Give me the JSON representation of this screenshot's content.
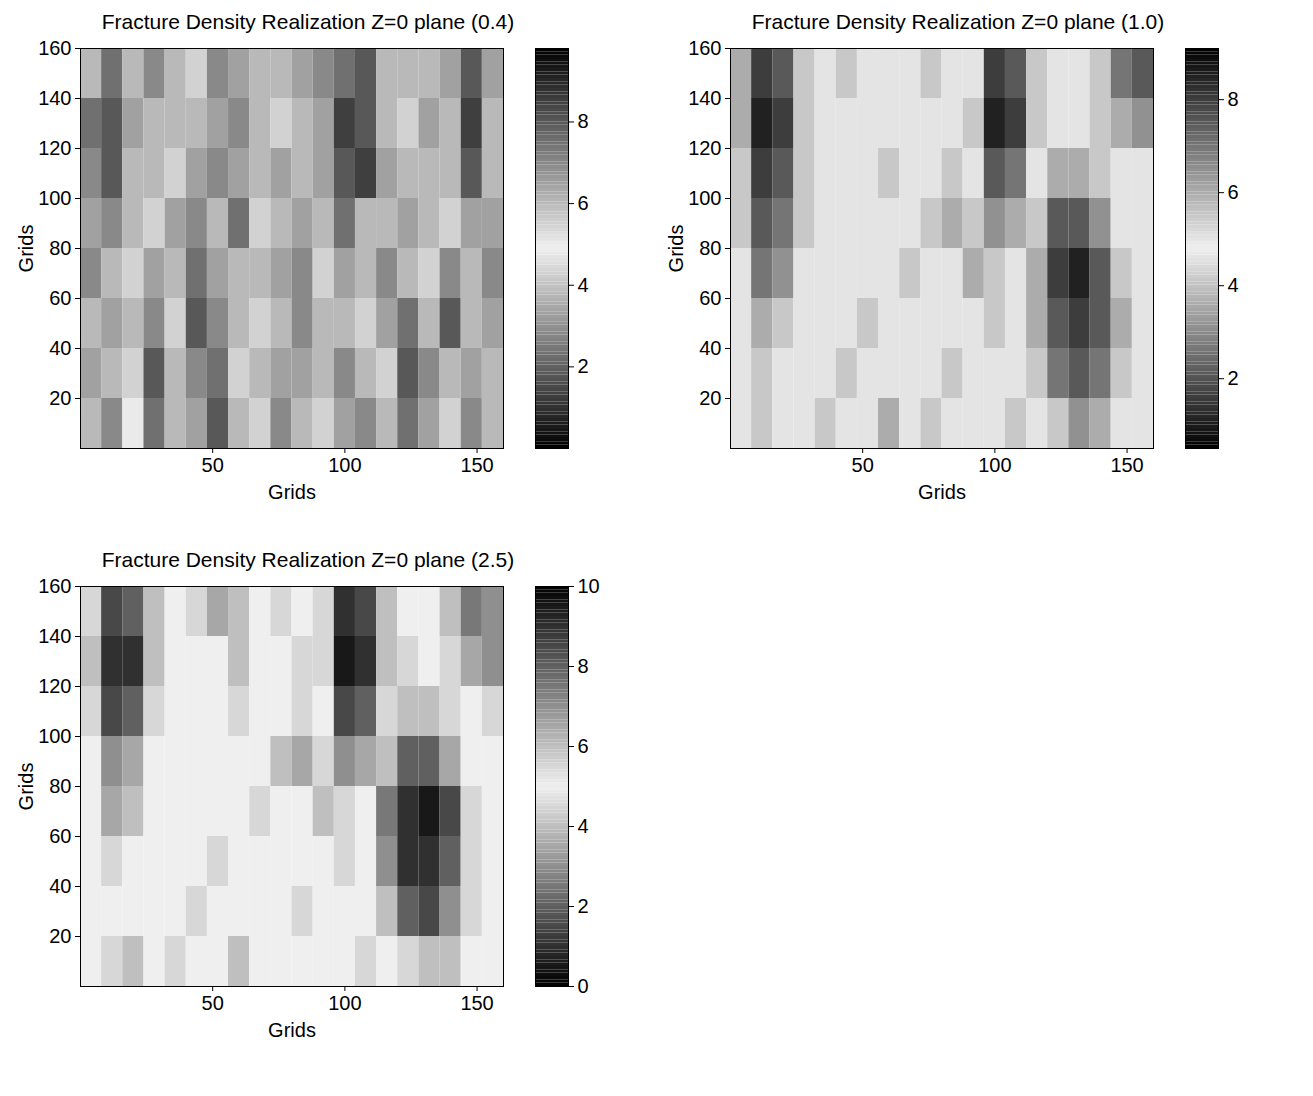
{
  "chart_data": [
    {
      "type": "heatmap",
      "title": "Fracture Density Realization Z=0 plane (0.4)",
      "x_label": "Grids",
      "y_label": "Grids",
      "xlim": [
        0,
        160
      ],
      "ylim": [
        0,
        160
      ],
      "xticks": [
        50,
        100,
        150
      ],
      "yticks": [
        20,
        40,
        60,
        80,
        100,
        120,
        140,
        160
      ],
      "x_bins": [
        0,
        8,
        16,
        24,
        32,
        40,
        48,
        56,
        64,
        72,
        80,
        88,
        96,
        104,
        112,
        120,
        128,
        136,
        144,
        152,
        160
      ],
      "y_bins": [
        0,
        20,
        40,
        60,
        80,
        100,
        120,
        140,
        160
      ],
      "cells": [
        [
          6,
          7,
          5,
          7.5,
          6,
          6.5,
          8,
          6,
          5.5,
          7,
          6,
          5.5,
          6.5,
          7,
          6,
          7.5,
          6.5,
          5.5,
          7,
          6
        ],
        [
          6.5,
          6,
          5.5,
          8,
          6,
          7,
          7.5,
          5.5,
          6,
          6.5,
          6.5,
          6,
          7,
          6,
          5.5,
          8,
          7,
          6,
          6.5,
          6
        ],
        [
          6,
          6.5,
          6,
          7,
          5.5,
          8,
          7,
          6,
          5.5,
          6,
          7,
          6,
          6,
          5.5,
          6.5,
          7.5,
          6,
          8,
          6,
          6.5
        ],
        [
          7,
          6,
          5.5,
          6.5,
          6,
          7.5,
          6.5,
          6,
          6,
          6.5,
          7,
          5.5,
          6.5,
          6,
          7,
          6,
          5.5,
          7,
          6,
          7
        ],
        [
          6.5,
          7,
          6,
          5.5,
          6.5,
          7,
          6,
          7.5,
          5.5,
          6,
          6.5,
          6,
          7.5,
          6,
          6,
          6.5,
          6,
          5.5,
          6.5,
          6.5
        ],
        [
          7,
          8,
          6,
          6,
          5.5,
          6.5,
          7,
          6.5,
          6,
          6.5,
          6,
          6.5,
          8,
          8.5,
          6.5,
          6,
          6,
          6,
          8,
          6
        ],
        [
          7.5,
          8,
          6.5,
          6,
          6,
          6,
          6.5,
          7,
          6,
          5.5,
          6,
          6.5,
          8.5,
          8,
          6,
          5.5,
          6.5,
          6,
          8.5,
          6
        ],
        [
          6,
          7.5,
          6,
          7,
          6,
          5.5,
          7,
          6.5,
          6,
          6,
          6.5,
          7,
          7.5,
          8,
          6,
          6,
          6,
          6.5,
          8,
          6.5
        ]
      ],
      "colorbar": {
        "range": [
          0,
          9.8
        ],
        "ticks": [
          2,
          4,
          6,
          8
        ]
      }
    },
    {
      "type": "heatmap",
      "title": "Fracture Density Realization Z=0 plane (1.0)",
      "x_label": "Grids",
      "y_label": "Grids",
      "xlim": [
        0,
        160
      ],
      "ylim": [
        0,
        160
      ],
      "xticks": [
        50,
        100,
        150
      ],
      "yticks": [
        20,
        40,
        60,
        80,
        100,
        120,
        140,
        160
      ],
      "x_bins": [
        0,
        8,
        16,
        24,
        32,
        40,
        48,
        56,
        64,
        72,
        80,
        88,
        96,
        104,
        112,
        120,
        128,
        136,
        144,
        152,
        160
      ],
      "y_bins": [
        0,
        20,
        40,
        60,
        80,
        100,
        120,
        140,
        160
      ],
      "cells": [
        [
          5,
          5.5,
          5,
          5,
          5.5,
          5,
          5,
          6,
          5,
          5.5,
          5,
          5,
          5,
          5.5,
          5,
          5.5,
          6.5,
          6,
          5,
          5
        ],
        [
          5,
          5.5,
          5,
          5,
          5,
          5.5,
          5,
          5,
          5,
          5,
          5.5,
          5,
          5,
          5,
          5.5,
          7,
          7.5,
          7,
          5.5,
          5
        ],
        [
          5,
          6,
          5.5,
          5,
          5,
          5,
          5.5,
          5,
          5,
          5,
          5,
          5,
          5.5,
          5,
          6,
          7.5,
          8,
          7.5,
          6,
          5
        ],
        [
          5,
          7,
          6.5,
          5,
          5,
          5,
          5,
          5,
          5.5,
          5,
          5,
          6,
          5.5,
          5,
          6,
          8,
          8.5,
          7.5,
          5.5,
          5
        ],
        [
          5.5,
          7.5,
          7,
          5.5,
          5,
          5,
          5,
          5,
          5,
          5.5,
          6,
          5.5,
          6.5,
          6,
          5.5,
          7.5,
          7.5,
          6.5,
          5,
          5
        ],
        [
          5.5,
          8,
          7.5,
          5.5,
          5,
          5,
          5,
          5.5,
          5,
          5,
          5.5,
          5,
          7.5,
          7,
          5,
          6,
          6,
          5.5,
          5,
          5
        ],
        [
          6,
          8.5,
          8,
          5.5,
          5,
          5,
          5,
          5,
          5,
          5,
          5,
          5.5,
          8.5,
          8,
          5.5,
          5,
          5,
          5.5,
          6,
          6.5
        ],
        [
          6,
          8,
          7.5,
          5.5,
          5,
          5.5,
          5,
          5,
          5,
          5.5,
          5,
          5,
          8,
          7.5,
          5.5,
          5,
          5,
          5.5,
          7,
          7.5
        ]
      ],
      "colorbar": {
        "range": [
          0.5,
          9.1
        ],
        "ticks": [
          2,
          4,
          6,
          8
        ]
      }
    },
    {
      "type": "heatmap",
      "title": "Fracture Density Realization Z=0 plane (2.5)",
      "x_label": "Grids",
      "y_label": "Grids",
      "xlim": [
        0,
        160
      ],
      "ylim": [
        0,
        160
      ],
      "xticks": [
        50,
        100,
        150
      ],
      "yticks": [
        20,
        40,
        60,
        80,
        100,
        120,
        140,
        160
      ],
      "x_bins": [
        0,
        8,
        16,
        24,
        32,
        40,
        48,
        56,
        64,
        72,
        80,
        88,
        96,
        104,
        112,
        120,
        128,
        136,
        144,
        152,
        160
      ],
      "y_bins": [
        0,
        20,
        40,
        60,
        80,
        100,
        120,
        140,
        160
      ],
      "cells": [
        [
          5,
          5.5,
          6,
          5,
          5.5,
          5,
          5,
          6,
          5,
          5,
          5,
          5,
          5,
          5.5,
          5,
          5.5,
          6,
          6,
          5,
          5
        ],
        [
          5,
          5,
          5,
          5,
          5,
          5.5,
          5,
          5,
          5,
          5,
          5.5,
          5,
          5,
          5,
          6,
          8,
          8.5,
          7,
          5.5,
          5
        ],
        [
          5,
          5.5,
          5,
          5,
          5,
          5,
          5.5,
          5,
          5,
          5,
          5,
          5,
          5.5,
          5,
          7,
          9,
          9,
          8,
          5.5,
          5
        ],
        [
          5,
          6.5,
          6,
          5,
          5,
          5,
          5,
          5,
          5.5,
          5,
          5,
          6,
          5.5,
          5,
          7.5,
          9,
          9.5,
          8.5,
          5.5,
          5
        ],
        [
          5,
          7,
          6.5,
          5,
          5,
          5,
          5,
          5,
          5,
          6,
          6.5,
          5.5,
          7,
          6.5,
          6,
          8,
          8,
          6.5,
          5,
          5
        ],
        [
          5.5,
          8.5,
          8,
          5.5,
          5,
          5,
          5,
          5.5,
          5,
          5,
          5.5,
          5,
          8.5,
          8,
          5.5,
          6,
          6,
          5.5,
          5,
          5.5
        ],
        [
          6,
          9,
          9,
          6,
          5,
          5,
          5,
          6,
          5,
          5,
          5.5,
          5.5,
          9.5,
          9,
          6,
          5.5,
          5,
          5.5,
          6.5,
          7
        ],
        [
          5.5,
          8.5,
          8,
          6,
          5,
          5.5,
          6.5,
          6,
          5,
          5.5,
          5,
          5.5,
          9,
          8.5,
          6,
          5,
          5,
          6,
          7.5,
          7
        ]
      ],
      "colorbar": {
        "range": [
          0,
          10
        ],
        "ticks": [
          0,
          2,
          4,
          6,
          8,
          10
        ]
      }
    }
  ]
}
